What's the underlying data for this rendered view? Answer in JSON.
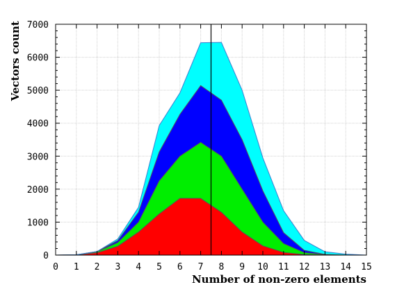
{
  "chart_data": {
    "type": "area",
    "stacked": true,
    "xlabel": "Number of non-zero elements",
    "ylabel": "Vectors count",
    "xlim": [
      0,
      15
    ],
    "ylim": [
      0,
      7000
    ],
    "x_ticks": [
      0,
      1,
      2,
      3,
      4,
      5,
      6,
      7,
      8,
      9,
      10,
      11,
      12,
      13,
      14,
      15
    ],
    "y_ticks": [
      0,
      1000,
      2000,
      3000,
      4000,
      5000,
      6000,
      7000
    ],
    "grid": true,
    "vertical_line_x": 7.5,
    "x": [
      0,
      1,
      2,
      3,
      4,
      5,
      6,
      7,
      8,
      9,
      10,
      11,
      12,
      13,
      14,
      15
    ],
    "series": [
      {
        "color": "#ff0000",
        "values": [
          0,
          5,
          70,
          270,
          700,
          1250,
          1720,
          1720,
          1300,
          700,
          280,
          80,
          15,
          2,
          0,
          0
        ]
      },
      {
        "color": "#00ee00",
        "values": [
          0,
          3,
          30,
          110,
          300,
          1000,
          1280,
          1700,
          1700,
          1300,
          720,
          270,
          60,
          10,
          0,
          0
        ]
      },
      {
        "color": "#0000ff",
        "values": [
          0,
          2,
          10,
          60,
          300,
          880,
          1270,
          1720,
          1700,
          1500,
          950,
          330,
          70,
          10,
          0,
          0
        ]
      },
      {
        "color": "#00ffff",
        "values": [
          0,
          0,
          0,
          50,
          150,
          800,
          650,
          1300,
          1750,
          1500,
          1000,
          670,
          300,
          80,
          30,
          0
        ]
      }
    ]
  }
}
